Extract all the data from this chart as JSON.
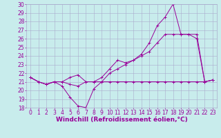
{
  "xlabel": "Windchill (Refroidissement éolien,°C)",
  "xlim": [
    -0.5,
    23.5
  ],
  "ylim": [
    18,
    30
  ],
  "xticks": [
    0,
    1,
    2,
    3,
    4,
    5,
    6,
    7,
    8,
    9,
    10,
    11,
    12,
    13,
    14,
    15,
    16,
    17,
    18,
    19,
    20,
    21,
    22,
    23
  ],
  "yticks": [
    18,
    19,
    20,
    21,
    22,
    23,
    24,
    25,
    26,
    27,
    28,
    29,
    30
  ],
  "background_color": "#c8ecec",
  "line_color": "#990099",
  "grid_color": "#aaaacc",
  "tick_color": "#990099",
  "font_size_tick": 5.5,
  "font_size_label": 6.5,
  "line1_x": [
    0,
    1,
    2,
    3,
    4,
    5,
    6,
    7,
    8,
    9,
    10,
    11,
    12,
    13,
    14,
    15,
    16,
    17,
    18,
    19,
    20,
    21,
    22,
    23
  ],
  "line1_y": [
    21.5,
    21.0,
    20.7,
    21.0,
    21.0,
    20.7,
    20.5,
    21.0,
    21.0,
    21.0,
    21.0,
    21.0,
    21.0,
    21.0,
    21.0,
    21.0,
    21.0,
    21.0,
    21.0,
    21.0,
    21.0,
    21.0,
    21.0,
    21.2
  ],
  "line2_x": [
    0,
    1,
    2,
    3,
    4,
    5,
    6,
    7,
    8,
    9,
    10,
    11,
    12,
    13,
    14,
    15,
    16,
    17,
    18,
    19,
    20,
    21,
    22,
    23
  ],
  "line2_y": [
    21.5,
    21.0,
    20.7,
    21.0,
    20.5,
    19.2,
    18.2,
    18.0,
    20.2,
    21.0,
    22.0,
    22.5,
    23.0,
    23.5,
    24.0,
    24.5,
    25.5,
    26.5,
    26.5,
    26.5,
    26.5,
    26.0,
    21.0,
    21.2
  ],
  "line3_x": [
    0,
    1,
    2,
    3,
    4,
    5,
    6,
    7,
    8,
    9,
    10,
    11,
    12,
    13,
    14,
    15,
    16,
    17,
    18,
    19,
    20,
    21,
    22,
    23
  ],
  "line3_y": [
    21.5,
    21.0,
    20.7,
    21.0,
    21.0,
    21.5,
    21.8,
    21.0,
    21.0,
    21.5,
    22.5,
    23.5,
    23.2,
    23.5,
    24.2,
    25.5,
    27.5,
    28.5,
    30.0,
    26.5,
    26.5,
    26.5,
    21.0,
    21.2
  ]
}
